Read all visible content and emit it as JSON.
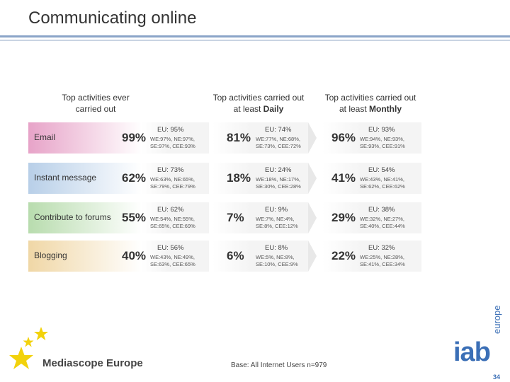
{
  "page": {
    "title": "Communicating online",
    "base_note": "Base: All Internet Users  n=979",
    "page_number": "34",
    "footer_logo": "Mediascope Europe",
    "iab_logo": "iab",
    "iab_logo_sub": "europe"
  },
  "columns": {
    "ever": {
      "line1": "Top activities ever",
      "line2": "carried out"
    },
    "daily": {
      "line1": "Top activities carried out",
      "line2_prefix": "at least ",
      "line2_bold": "Daily"
    },
    "monthly": {
      "line1": "Top activities carried out",
      "line2_prefix": "at least ",
      "line2_bold": "Monthly"
    }
  },
  "rows": [
    {
      "label": "Email",
      "ever": {
        "pct": "99%",
        "eu": "EU: 95%",
        "sub1": "WE:97%, NE:97%,",
        "sub2": "SE:97%, CEE:93%"
      },
      "daily": {
        "pct": "81%",
        "eu": "EU: 74%",
        "sub1": "WE:77%, NE:68%,",
        "sub2": "SE:73%, CEE:72%"
      },
      "monthly": {
        "pct": "96%",
        "eu": "EU: 93%",
        "sub1": "WE:94%, NE:93%,",
        "sub2": "SE:93%, CEE:91%"
      }
    },
    {
      "label": "Instant message",
      "ever": {
        "pct": "62%",
        "eu": "EU: 73%",
        "sub1": "WE:63%, NE:65%,",
        "sub2": "SE:79%, CEE:79%"
      },
      "daily": {
        "pct": "18%",
        "eu": "EU: 24%",
        "sub1": "WE:18%, NE:17%,",
        "sub2": "SE:30%, CEE:28%"
      },
      "monthly": {
        "pct": "41%",
        "eu": "EU: 54%",
        "sub1": "WE:43%, NE:41%,",
        "sub2": "SE:62%, CEE:62%"
      }
    },
    {
      "label": "Contribute to forums",
      "ever": {
        "pct": "55%",
        "eu": "EU: 62%",
        "sub1": "WE:54%, NE:55%,",
        "sub2": "SE:65%, CEE:69%"
      },
      "daily": {
        "pct": "7%",
        "eu": "EU: 9%",
        "sub1": "WE:7%, NE:4%,",
        "sub2": "SE:8%, CEE:12%"
      },
      "monthly": {
        "pct": "29%",
        "eu": "EU: 38%",
        "sub1": "WE:32%, NE:27%,",
        "sub2": "SE:40%, CEE:44%"
      }
    },
    {
      "label": "Blogging",
      "ever": {
        "pct": "40%",
        "eu": "EU: 56%",
        "sub1": "WE:43%, NE:49%,",
        "sub2": "SE:63%, CEE:65%"
      },
      "daily": {
        "pct": "6%",
        "eu": "EU: 8%",
        "sub1": "WE:5%, NE:8%,",
        "sub2": "SE:10%, CEE:9%"
      },
      "monthly": {
        "pct": "22%",
        "eu": "EU: 32%",
        "sub1": "WE:25%, NE:28%,",
        "sub2": "SE:41%, CEE:34%"
      }
    }
  ],
  "colors": {
    "row_colors": [
      "#e7a3c8",
      "#b8cfe8",
      "#b8dcae",
      "#f0d7a6"
    ],
    "accent": "#3b6fb6",
    "star": "#f2d20b"
  }
}
